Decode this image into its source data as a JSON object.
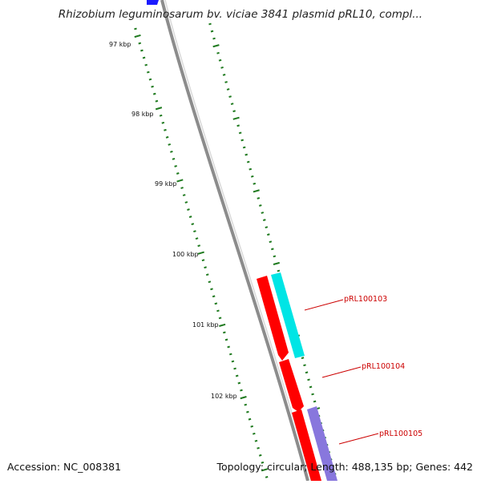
{
  "header": {
    "title": "Rhizobium leguminosarum bv. viciae 3841 plasmid pRL10, compl..."
  },
  "footer": {
    "accession": "Accession: NC_008381",
    "summary": "Topology: circular; Length: 488,135 bp; Genes: 442"
  },
  "map": {
    "kbp_labels": [
      "97 kbp",
      "98 kbp",
      "99 kbp",
      "100 kbp",
      "101 kbp",
      "102 kbp"
    ],
    "genes": [
      {
        "name": "pRL100103"
      },
      {
        "name": "pRL100104"
      },
      {
        "name": "pRL100105"
      }
    ],
    "colors": {
      "backbone": "#8c8c8c",
      "tick": "#1f7a1f",
      "forward_gene": "#ff0000",
      "reverse_gene_cyan": "#00e5e5",
      "reverse_gene_purple": "#8877dd",
      "prior_gene": "#1a1aff",
      "gene_label": "#cc0000"
    }
  }
}
